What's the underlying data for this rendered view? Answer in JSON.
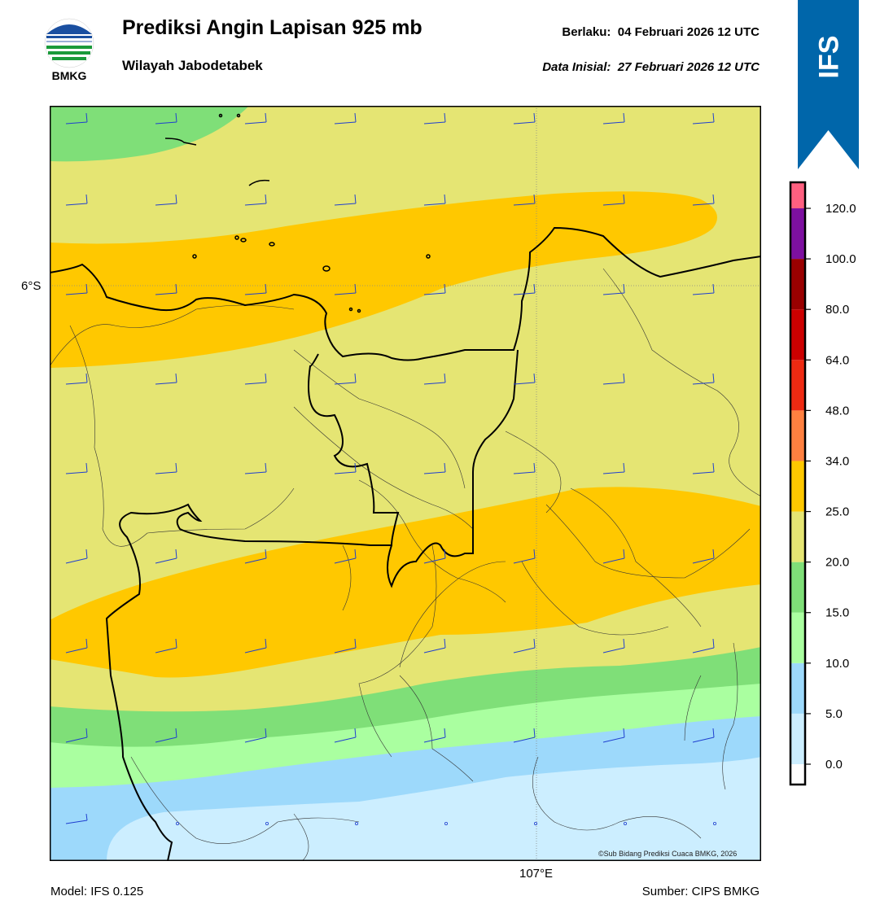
{
  "header": {
    "title": "Prediksi Angin Lapisan 925 mb",
    "subtitle": "Wilayah Jabodetabek",
    "valid_label": "Berlaku:",
    "valid_time": "04 Februari 2026 12 UTC",
    "init_label": "Data Inisial:",
    "init_time": "27 Februari 2026 12 UTC"
  },
  "logo": {
    "text": "BMKG",
    "colors": [
      "#1a4fa0",
      "#1a9a3a"
    ]
  },
  "badge": {
    "text": "IFS",
    "color": "#0066aa"
  },
  "map": {
    "lat_label": "6°S",
    "lon_label": "107°E",
    "copyright": "©Sub Bidang Prediksi Cuaca BMKG, 2026",
    "wind_barb_color": "#1f3fcf",
    "coastline_color": "#000000"
  },
  "colorbar": {
    "ticks": [
      "0.0",
      "5.0",
      "10.0",
      "15.0",
      "20.0",
      "25.0",
      "34.0",
      "48.0",
      "64.0",
      "80.0",
      "100.0",
      "120.0"
    ],
    "colors": [
      "#ffffff",
      "#cceeff",
      "#9dd9fb",
      "#aaffa0",
      "#7fdf78",
      "#e5e573",
      "#ffc800",
      "#ff8040",
      "#ee2a12",
      "#cc0000",
      "#990000",
      "#7d10a0",
      "#ff6080"
    ]
  },
  "footer": {
    "model": "Model: IFS 0.125",
    "source": "Sumber: CIPS BMKG"
  }
}
